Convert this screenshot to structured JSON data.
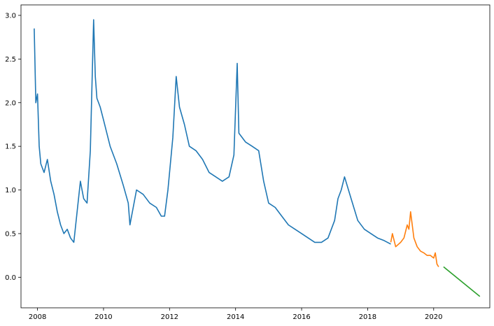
{
  "chart_data": {
    "type": "line",
    "title": "",
    "xlabel": "",
    "ylabel": "",
    "xlim": [
      2007.5,
      2021.7
    ],
    "ylim": [
      -0.35,
      3.12
    ],
    "x_ticks": [
      2008,
      2010,
      2012,
      2014,
      2016,
      2018,
      2020
    ],
    "x_tick_labels": [
      "2008",
      "2010",
      "2012",
      "2014",
      "2016",
      "2018",
      "2020"
    ],
    "y_ticks": [
      0.0,
      0.5,
      1.0,
      1.5,
      2.0,
      2.5,
      3.0
    ],
    "y_tick_labels": [
      "0.0",
      "0.5",
      "1.0",
      "1.5",
      "2.0",
      "2.5",
      "3.0"
    ],
    "grid": false,
    "legend": "none",
    "series": [
      {
        "color": "#1f77b4",
        "x": [
          2007.9,
          2007.95,
          2008.0,
          2008.05,
          2008.1,
          2008.2,
          2008.3,
          2008.4,
          2008.5,
          2008.6,
          2008.7,
          2008.8,
          2008.9,
          2009.0,
          2009.1,
          2009.2,
          2009.3,
          2009.4,
          2009.5,
          2009.6,
          2009.7,
          2009.75,
          2009.8,
          2009.9,
          2010.0,
          2010.2,
          2010.4,
          2010.6,
          2010.75,
          2010.8,
          2011.0,
          2011.2,
          2011.4,
          2011.6,
          2011.75,
          2011.85,
          2011.95,
          2012.1,
          2012.2,
          2012.3,
          2012.45,
          2012.6,
          2012.8,
          2013.0,
          2013.2,
          2013.4,
          2013.6,
          2013.8,
          2013.95,
          2014.05,
          2014.1,
          2014.3,
          2014.5,
          2014.7,
          2014.85,
          2015.0,
          2015.2,
          2015.4,
          2015.6,
          2015.8,
          2016.0,
          2016.2,
          2016.4,
          2016.6,
          2016.8,
          2017.0,
          2017.1,
          2017.2,
          2017.3,
          2017.5,
          2017.7,
          2017.9,
          2018.1,
          2018.3,
          2018.5,
          2018.7
        ],
        "values": [
          2.85,
          2.0,
          2.1,
          1.5,
          1.3,
          1.2,
          1.35,
          1.1,
          0.95,
          0.75,
          0.6,
          0.5,
          0.55,
          0.45,
          0.4,
          0.75,
          1.1,
          0.9,
          0.85,
          1.45,
          2.95,
          2.3,
          2.05,
          1.95,
          1.8,
          1.5,
          1.3,
          1.05,
          0.85,
          0.6,
          1.0,
          0.95,
          0.85,
          0.8,
          0.7,
          0.7,
          1.0,
          1.6,
          2.3,
          1.95,
          1.75,
          1.5,
          1.45,
          1.35,
          1.2,
          1.15,
          1.1,
          1.15,
          1.4,
          2.45,
          1.65,
          1.55,
          1.5,
          1.45,
          1.1,
          0.85,
          0.8,
          0.7,
          0.6,
          0.55,
          0.5,
          0.45,
          0.4,
          0.4,
          0.45,
          0.65,
          0.9,
          1.0,
          1.15,
          0.9,
          0.65,
          0.55,
          0.5,
          0.45,
          0.42,
          0.38
        ]
      },
      {
        "color": "#ff7f0e",
        "x": [
          2018.7,
          2018.75,
          2018.85,
          2019.0,
          2019.1,
          2019.2,
          2019.25,
          2019.3,
          2019.4,
          2019.5,
          2019.6,
          2019.7,
          2019.8,
          2019.9,
          2020.0,
          2020.05,
          2020.1,
          2020.15
        ],
        "values": [
          0.4,
          0.5,
          0.35,
          0.4,
          0.45,
          0.6,
          0.55,
          0.75,
          0.45,
          0.35,
          0.3,
          0.28,
          0.25,
          0.25,
          0.22,
          0.28,
          0.15,
          0.12
        ]
      },
      {
        "color": "#2ca02c",
        "x": [
          2020.3,
          2021.4
        ],
        "values": [
          0.12,
          -0.22
        ]
      }
    ]
  }
}
